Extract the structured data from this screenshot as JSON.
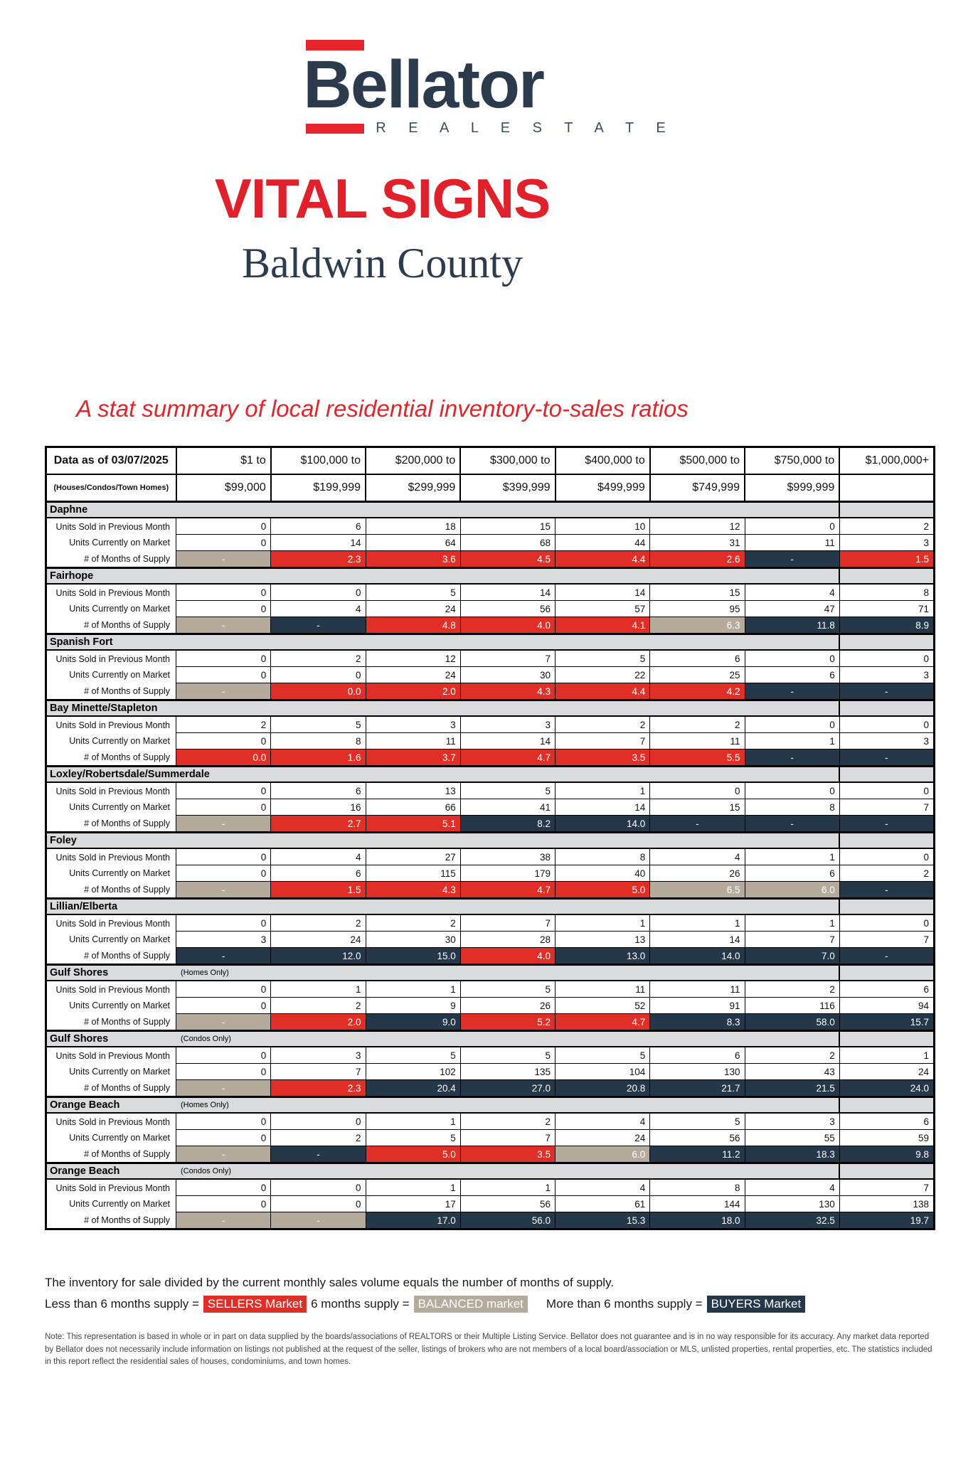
{
  "logo": {
    "name": "Bellator",
    "tagline": "R E A L   E S T A T E"
  },
  "title": "VITAL SIGNS",
  "county": "Baldwin County",
  "subtitle": "A stat summary of local residential inventory-to-sales ratios",
  "colors": {
    "red": "#e12f27",
    "navy": "#25384a",
    "tan": "#b4ab9d",
    "band_gray": "#d9dbdd",
    "title_red": "#e0202a",
    "brand_navy": "#2b3a4d"
  },
  "table": {
    "header": {
      "label_line1": "Data as of 03/07/2025",
      "label_line2": "(Houses/Condos/Town Homes)",
      "columns": [
        {
          "line1": "$1 to",
          "line2": "$99,000"
        },
        {
          "line1": "$100,000 to",
          "line2": "$199,999"
        },
        {
          "line1": "$200,000 to",
          "line2": "$299,999"
        },
        {
          "line1": "$300,000 to",
          "line2": "$399,999"
        },
        {
          "line1": "$400,000 to",
          "line2": "$499,999"
        },
        {
          "line1": "$500,000 to",
          "line2": "$749,999"
        },
        {
          "line1": "$750,000 to",
          "line2": "$999,999"
        },
        {
          "line1": "$1,000,000+",
          "line2": ""
        }
      ]
    },
    "row_labels": [
      "Units Sold in Previous Month",
      "Units Currently on Market",
      "# of Months of Supply"
    ],
    "sections": [
      {
        "name": "Daphne",
        "note": "",
        "sold": [
          "0",
          "6",
          "18",
          "15",
          "10",
          "12",
          "0",
          "2"
        ],
        "market": [
          "0",
          "14",
          "64",
          "68",
          "44",
          "31",
          "11",
          "3"
        ],
        "supply": [
          "-",
          "2.3",
          "3.6",
          "4.5",
          "4.4",
          "2.6",
          "-",
          "1.5"
        ],
        "supply_colors": [
          "tan",
          "red",
          "red",
          "red",
          "red",
          "red",
          "navy",
          "red"
        ]
      },
      {
        "name": "Fairhope",
        "note": "",
        "sold": [
          "0",
          "0",
          "5",
          "14",
          "14",
          "15",
          "4",
          "8"
        ],
        "market": [
          "0",
          "4",
          "24",
          "56",
          "57",
          "95",
          "47",
          "71"
        ],
        "supply": [
          "-",
          "-",
          "4.8",
          "4.0",
          "4.1",
          "6.3",
          "11.8",
          "8.9"
        ],
        "supply_colors": [
          "tan",
          "navy",
          "red",
          "red",
          "red",
          "tan",
          "navy",
          "navy"
        ]
      },
      {
        "name": "Spanish Fort",
        "note": "",
        "sold": [
          "0",
          "2",
          "12",
          "7",
          "5",
          "6",
          "0",
          "0"
        ],
        "market": [
          "0",
          "0",
          "24",
          "30",
          "22",
          "25",
          "6",
          "3"
        ],
        "supply": [
          "-",
          "0.0",
          "2.0",
          "4.3",
          "4.4",
          "4.2",
          "-",
          "-"
        ],
        "supply_colors": [
          "tan",
          "red",
          "red",
          "red",
          "red",
          "red",
          "navy",
          "navy"
        ]
      },
      {
        "name": "Bay Minette/Stapleton",
        "note": "",
        "sold": [
          "2",
          "5",
          "3",
          "3",
          "2",
          "2",
          "0",
          "0"
        ],
        "market": [
          "0",
          "8",
          "11",
          "14",
          "7",
          "11",
          "1",
          "3"
        ],
        "supply": [
          "0.0",
          "1.6",
          "3.7",
          "4.7",
          "3.5",
          "5.5",
          "-",
          "-"
        ],
        "supply_colors": [
          "red",
          "red",
          "red",
          "red",
          "red",
          "red",
          "navy",
          "navy"
        ]
      },
      {
        "name": "Loxley/Robertsdale/Summerdale",
        "note": "",
        "sold": [
          "0",
          "6",
          "13",
          "5",
          "1",
          "0",
          "0",
          "0"
        ],
        "market": [
          "0",
          "16",
          "66",
          "41",
          "14",
          "15",
          "8",
          "7"
        ],
        "supply": [
          "-",
          "2.7",
          "5.1",
          "8.2",
          "14.0",
          "-",
          "-",
          "-"
        ],
        "supply_colors": [
          "tan",
          "red",
          "red",
          "navy",
          "navy",
          "navy",
          "navy",
          "navy"
        ]
      },
      {
        "name": "Foley",
        "note": "",
        "sold": [
          "0",
          "4",
          "27",
          "38",
          "8",
          "4",
          "1",
          "0"
        ],
        "market": [
          "0",
          "6",
          "115",
          "179",
          "40",
          "26",
          "6",
          "2"
        ],
        "supply": [
          "-",
          "1.5",
          "4.3",
          "4.7",
          "5.0",
          "6.5",
          "6.0",
          "-"
        ],
        "supply_colors": [
          "tan",
          "red",
          "red",
          "red",
          "red",
          "tan",
          "tan",
          "navy"
        ]
      },
      {
        "name": "Lillian/Elberta",
        "note": "",
        "sold": [
          "0",
          "2",
          "2",
          "7",
          "1",
          "1",
          "1",
          "0"
        ],
        "market": [
          "3",
          "24",
          "30",
          "28",
          "13",
          "14",
          "7",
          "7"
        ],
        "supply": [
          "-",
          "12.0",
          "15.0",
          "4.0",
          "13.0",
          "14.0",
          "7.0",
          "-"
        ],
        "supply_colors": [
          "navy",
          "navy",
          "navy",
          "red",
          "navy",
          "navy",
          "navy",
          "navy"
        ]
      },
      {
        "name": "Gulf Shores",
        "note": "(Homes Only)",
        "sold": [
          "0",
          "1",
          "1",
          "5",
          "11",
          "11",
          "2",
          "6"
        ],
        "market": [
          "0",
          "2",
          "9",
          "26",
          "52",
          "91",
          "116",
          "94"
        ],
        "supply": [
          "-",
          "2.0",
          "9.0",
          "5.2",
          "4.7",
          "8.3",
          "58.0",
          "15.7"
        ],
        "supply_colors": [
          "tan",
          "red",
          "navy",
          "red",
          "red",
          "navy",
          "navy",
          "navy"
        ]
      },
      {
        "name": "Gulf Shores",
        "note": "(Condos Only)",
        "sold": [
          "0",
          "3",
          "5",
          "5",
          "5",
          "6",
          "2",
          "1"
        ],
        "market": [
          "0",
          "7",
          "102",
          "135",
          "104",
          "130",
          "43",
          "24"
        ],
        "supply": [
          "-",
          "2.3",
          "20.4",
          "27.0",
          "20.8",
          "21.7",
          "21.5",
          "24.0"
        ],
        "supply_colors": [
          "tan",
          "red",
          "navy",
          "navy",
          "navy",
          "navy",
          "navy",
          "navy"
        ]
      },
      {
        "name": "Orange Beach",
        "note": "(Homes Only)",
        "sold": [
          "0",
          "0",
          "1",
          "2",
          "4",
          "5",
          "3",
          "6"
        ],
        "market": [
          "0",
          "2",
          "5",
          "7",
          "24",
          "56",
          "55",
          "59"
        ],
        "supply": [
          "-",
          "-",
          "5.0",
          "3.5",
          "6.0",
          "11.2",
          "18.3",
          "9.8"
        ],
        "supply_colors": [
          "tan",
          "navy",
          "red",
          "red",
          "tan",
          "navy",
          "navy",
          "navy"
        ]
      },
      {
        "name": "Orange Beach",
        "note": "(Condos Only)",
        "sold": [
          "0",
          "0",
          "1",
          "1",
          "4",
          "8",
          "4",
          "7"
        ],
        "market": [
          "0",
          "0",
          "17",
          "56",
          "61",
          "144",
          "130",
          "138"
        ],
        "supply": [
          "-",
          "-",
          "17.0",
          "56.0",
          "15.3",
          "18.0",
          "32.5",
          "19.7"
        ],
        "supply_colors": [
          "tan",
          "tan",
          "navy",
          "navy",
          "navy",
          "navy",
          "navy",
          "navy"
        ]
      }
    ]
  },
  "legend": {
    "intro": "The inventory for sale divided by the current monthly sales volume equals the number of months of supply.",
    "less_label": "Less than 6 months supply =",
    "sellers_chip": "SELLERS Market",
    "six_label": "6 months supply =",
    "balanced_chip": "BALANCED market",
    "more_label": "More than 6 months supply =",
    "buyers_chip": "BUYERS Market"
  },
  "disclaimer": "Note: This representation is based in whole or in part on data supplied by the boards/associations of REALTORS or their Multiple Listing Service. Bellator does not guarantee and is in no way responsible for its accuracy. Any market data reported by Bellator does not necessarily include information on listings not published at the request of the seller, listings of brokers who are not members of a local board/association or MLS, unlisted properties, rental properties, etc. The statistics included in this report reflect the residential sales of houses, condominiums, and town homes."
}
